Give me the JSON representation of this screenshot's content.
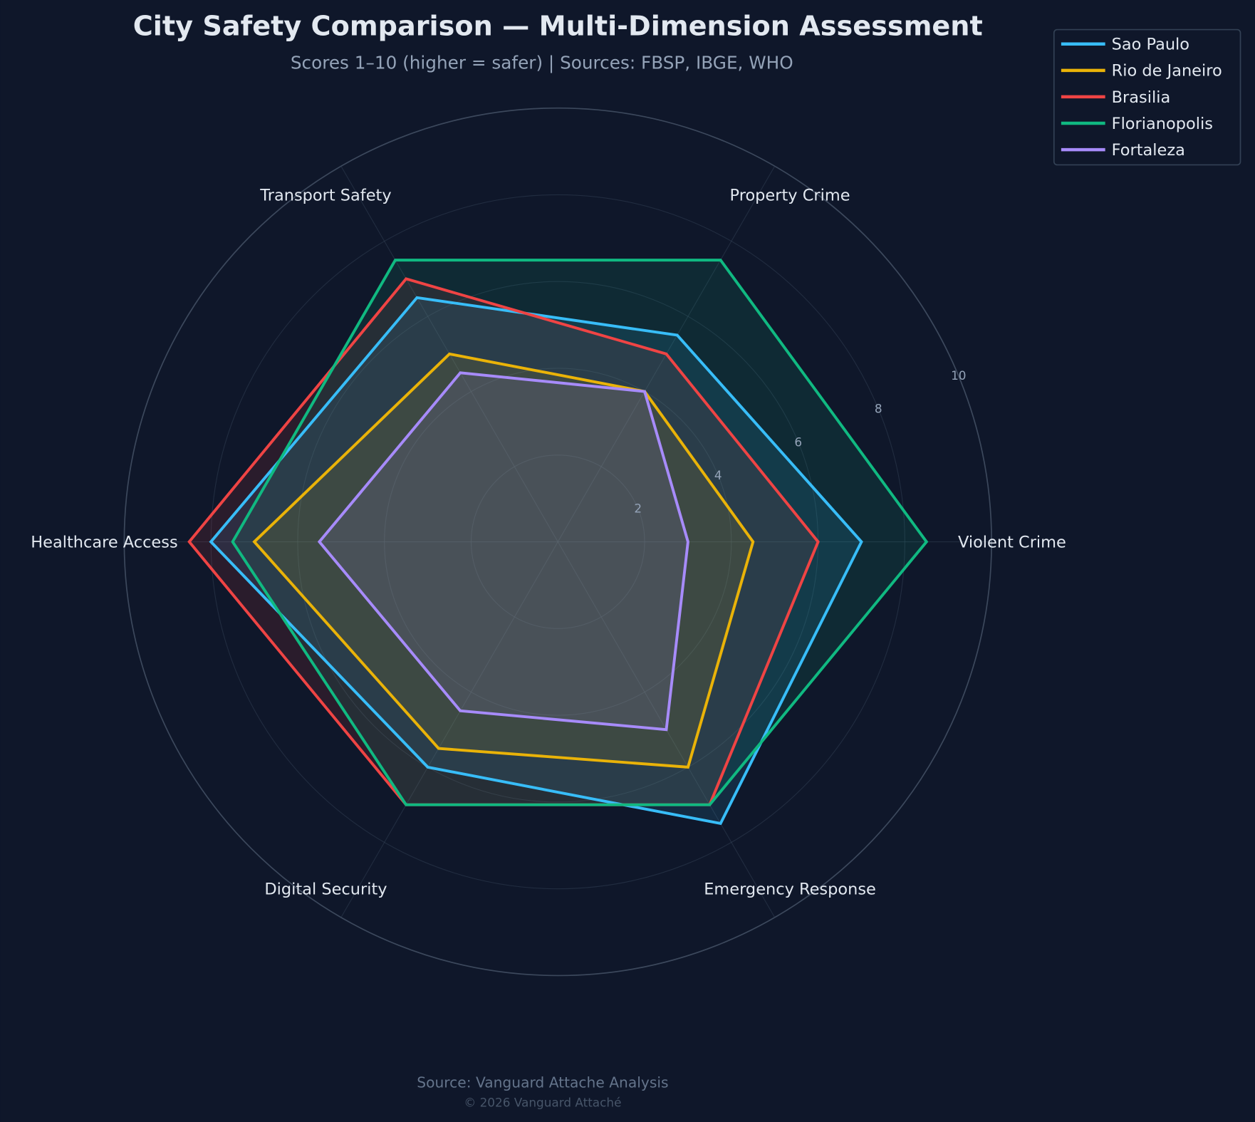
{
  "chart_data": {
    "type": "radar",
    "title": "City Safety Comparison — Multi-Dimension Assessment",
    "subtitle": "Scores 1–10 (higher = safer) | Sources: FBSP, IBGE, WHO",
    "categories": [
      "Violent Crime",
      "Property Crime",
      "Transport Safety",
      "Healthcare Access",
      "Digital Security",
      "Emergency Response"
    ],
    "rlim": [
      0,
      10
    ],
    "rticks": [
      "2",
      "4",
      "6",
      "8",
      "10"
    ],
    "grid": true,
    "legend_position": "top-right",
    "series": [
      {
        "name": "Sao Paulo",
        "color": "#38bdf8",
        "values": [
          7.0,
          5.5,
          6.5,
          8.0,
          6.0,
          7.5
        ]
      },
      {
        "name": "Rio de Janeiro",
        "color": "#eab308",
        "values": [
          4.5,
          4.0,
          5.0,
          7.0,
          5.5,
          6.0
        ]
      },
      {
        "name": "Brasilia",
        "color": "#ef4444",
        "values": [
          6.0,
          5.0,
          7.0,
          8.5,
          7.0,
          7.0
        ]
      },
      {
        "name": "Florianopolis",
        "color": "#10b981",
        "values": [
          8.5,
          7.5,
          7.5,
          7.5,
          7.0,
          7.0
        ]
      },
      {
        "name": "Fortaleza",
        "color": "#a78bfa",
        "values": [
          3.0,
          4.0,
          4.5,
          5.5,
          4.5,
          5.0
        ]
      }
    ]
  },
  "footer": {
    "source": "Source: Vanguard Attache Analysis",
    "copyright": "© 2026 Vanguard Attaché"
  }
}
